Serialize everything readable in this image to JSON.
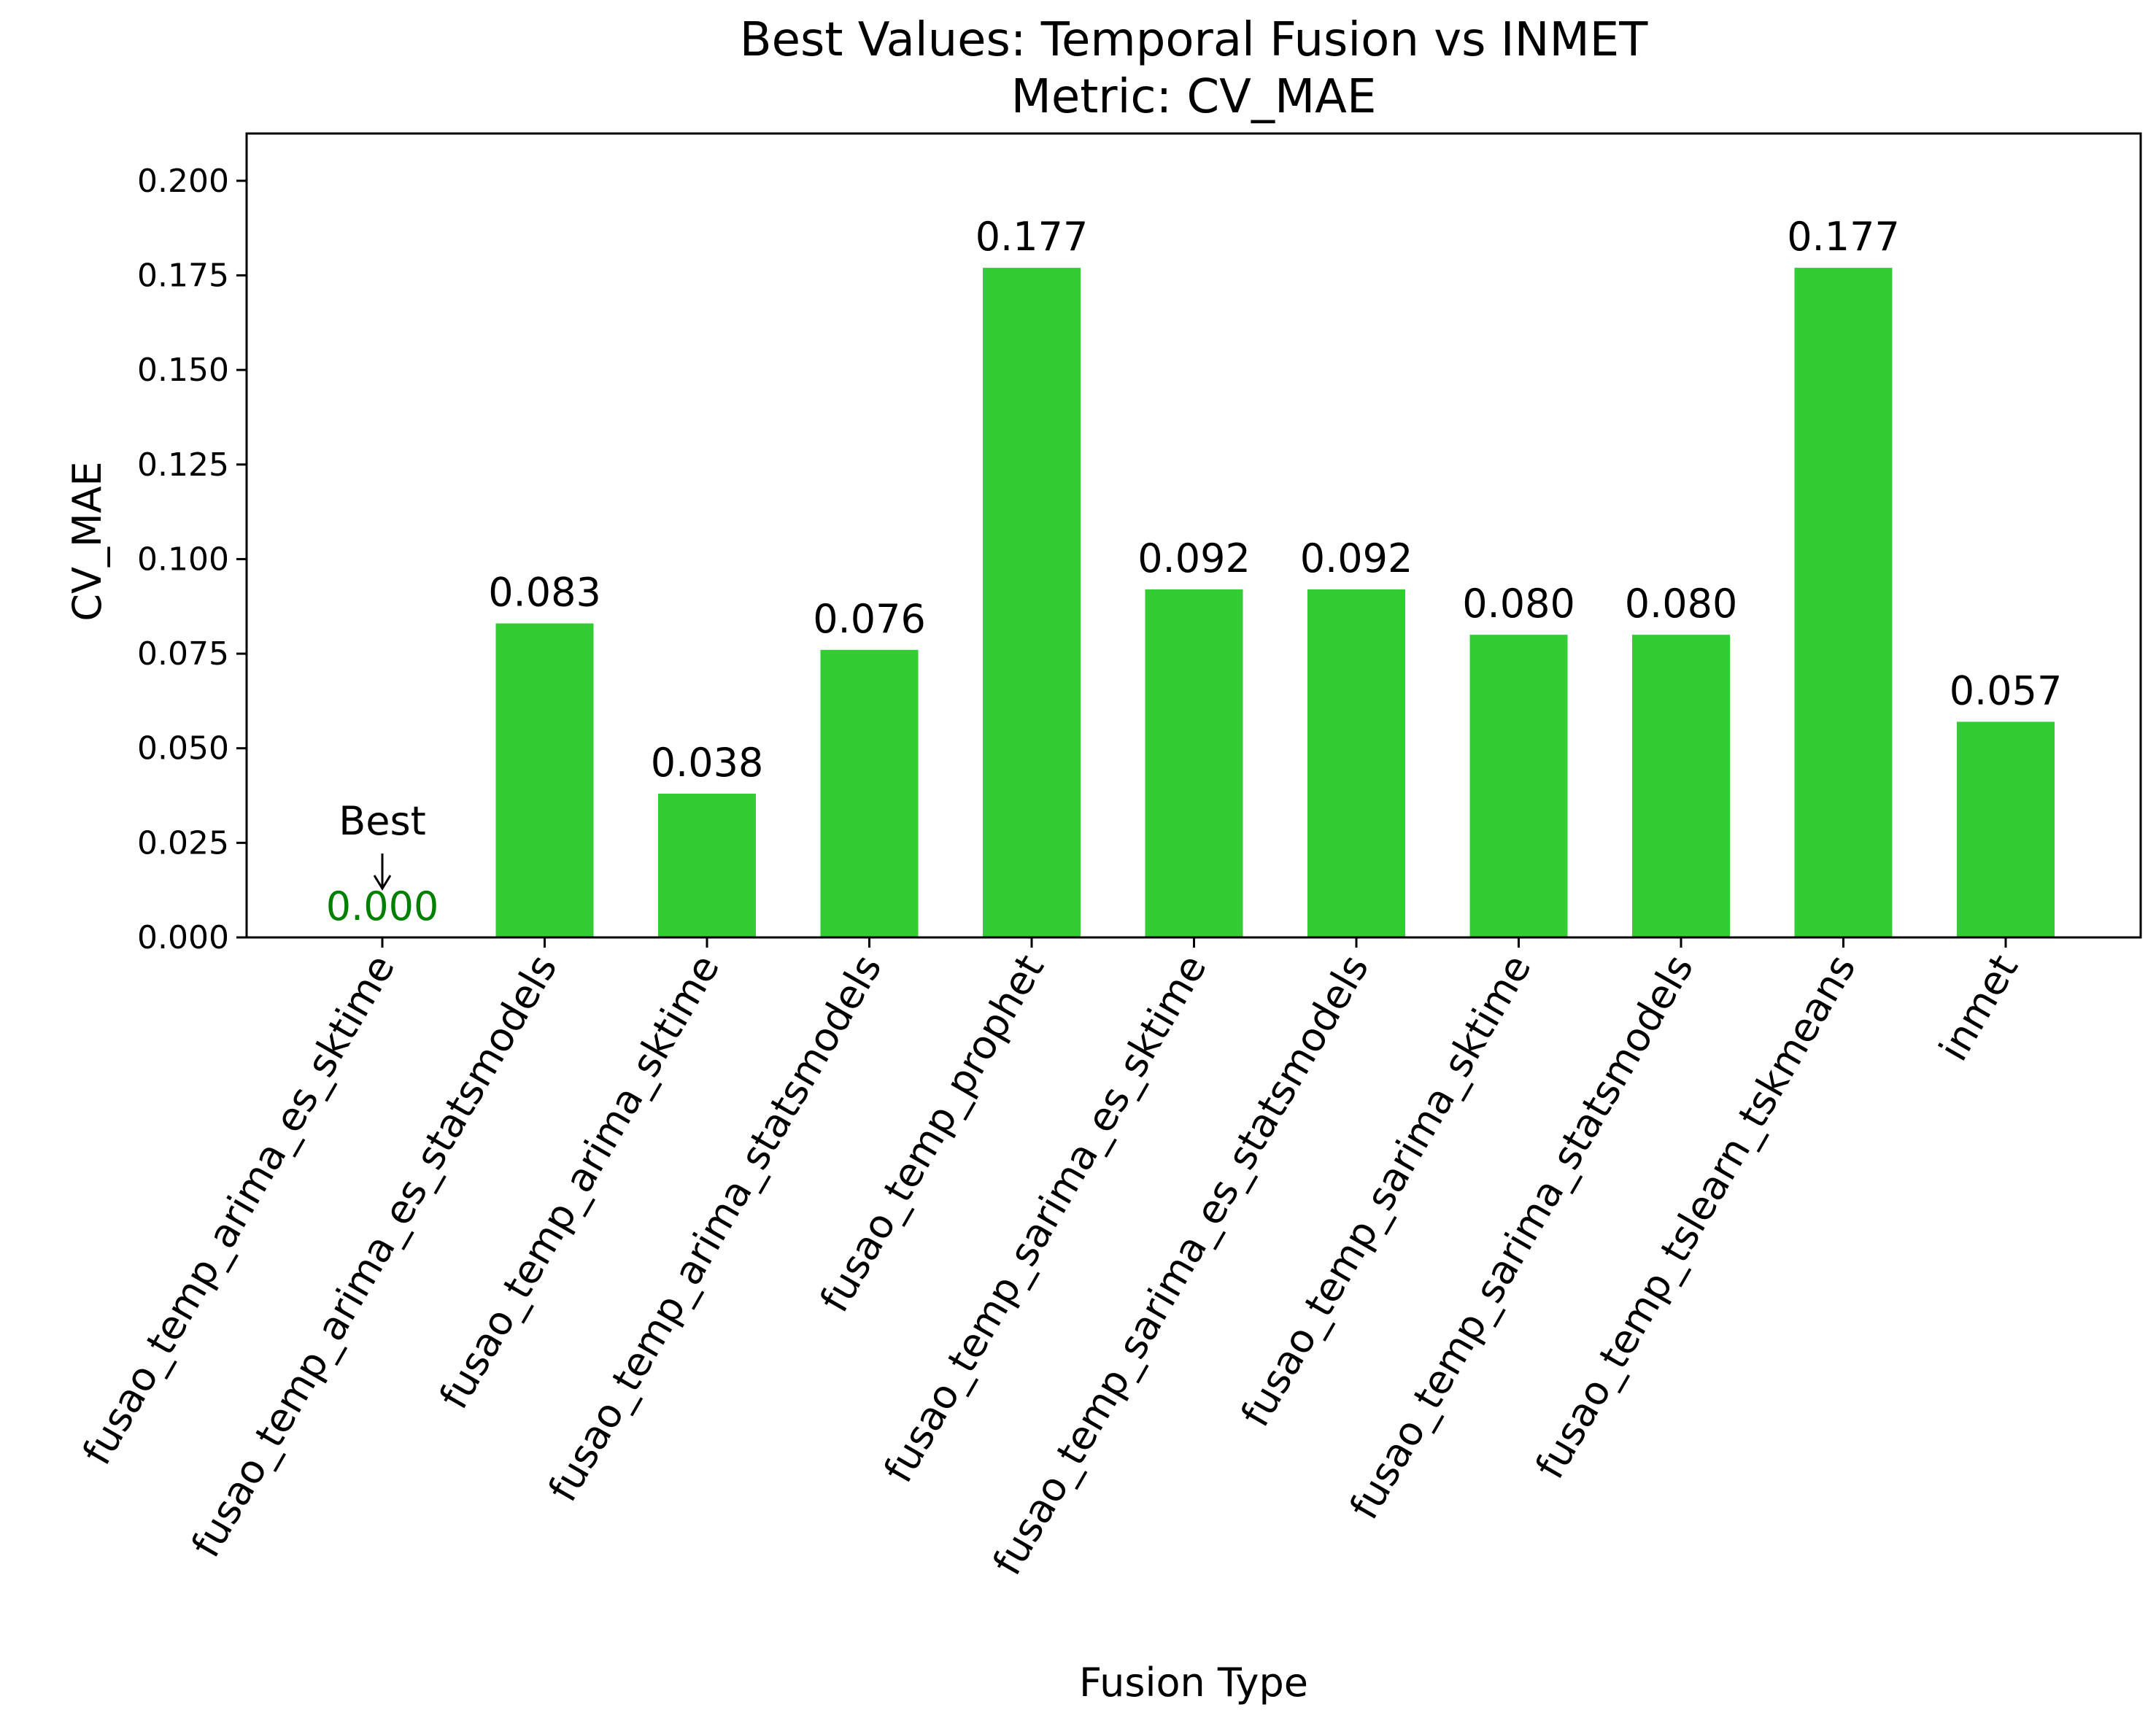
{
  "chart_data": {
    "type": "bar",
    "title": "Best Values: Temporal Fusion vs INMET",
    "subtitle": "Metric: CV_MAE",
    "xlabel": "Fusion Type",
    "ylabel": "CV_MAE",
    "ylim": [
      0,
      0.2125
    ],
    "yticks": [
      0.0,
      0.025,
      0.05,
      0.075,
      0.1,
      0.125,
      0.15,
      0.175,
      0.2
    ],
    "ytick_labels": [
      "0.000",
      "0.025",
      "0.050",
      "0.075",
      "0.100",
      "0.125",
      "0.150",
      "0.175",
      "0.200"
    ],
    "grid": false,
    "legend": null,
    "categories": [
      "fusao_temp_arima_es_sktime",
      "fusao_temp_arima_es_statsmodels",
      "fusao_temp_arima_sktime",
      "fusao_temp_arima_statsmodels",
      "fusao_temp_prophet",
      "fusao_temp_sarima_es_sktime",
      "fusao_temp_sarima_es_statsmodels",
      "fusao_temp_sarima_sktime",
      "fusao_temp_sarima_statsmodels",
      "fusao_temp_tslearn_tskmeans",
      "inmet"
    ],
    "values": [
      0.0,
      0.083,
      0.038,
      0.076,
      0.177,
      0.092,
      0.092,
      0.08,
      0.08,
      0.177,
      0.057
    ],
    "value_labels": [
      "0.000",
      "0.083",
      "0.038",
      "0.076",
      "0.177",
      "0.092",
      "0.092",
      "0.080",
      "0.080",
      "0.177",
      "0.057"
    ],
    "bar_color": "#33cc33",
    "highlight_label_color": "#008000",
    "annotation": {
      "text": "Best",
      "target_index": 0
    }
  }
}
